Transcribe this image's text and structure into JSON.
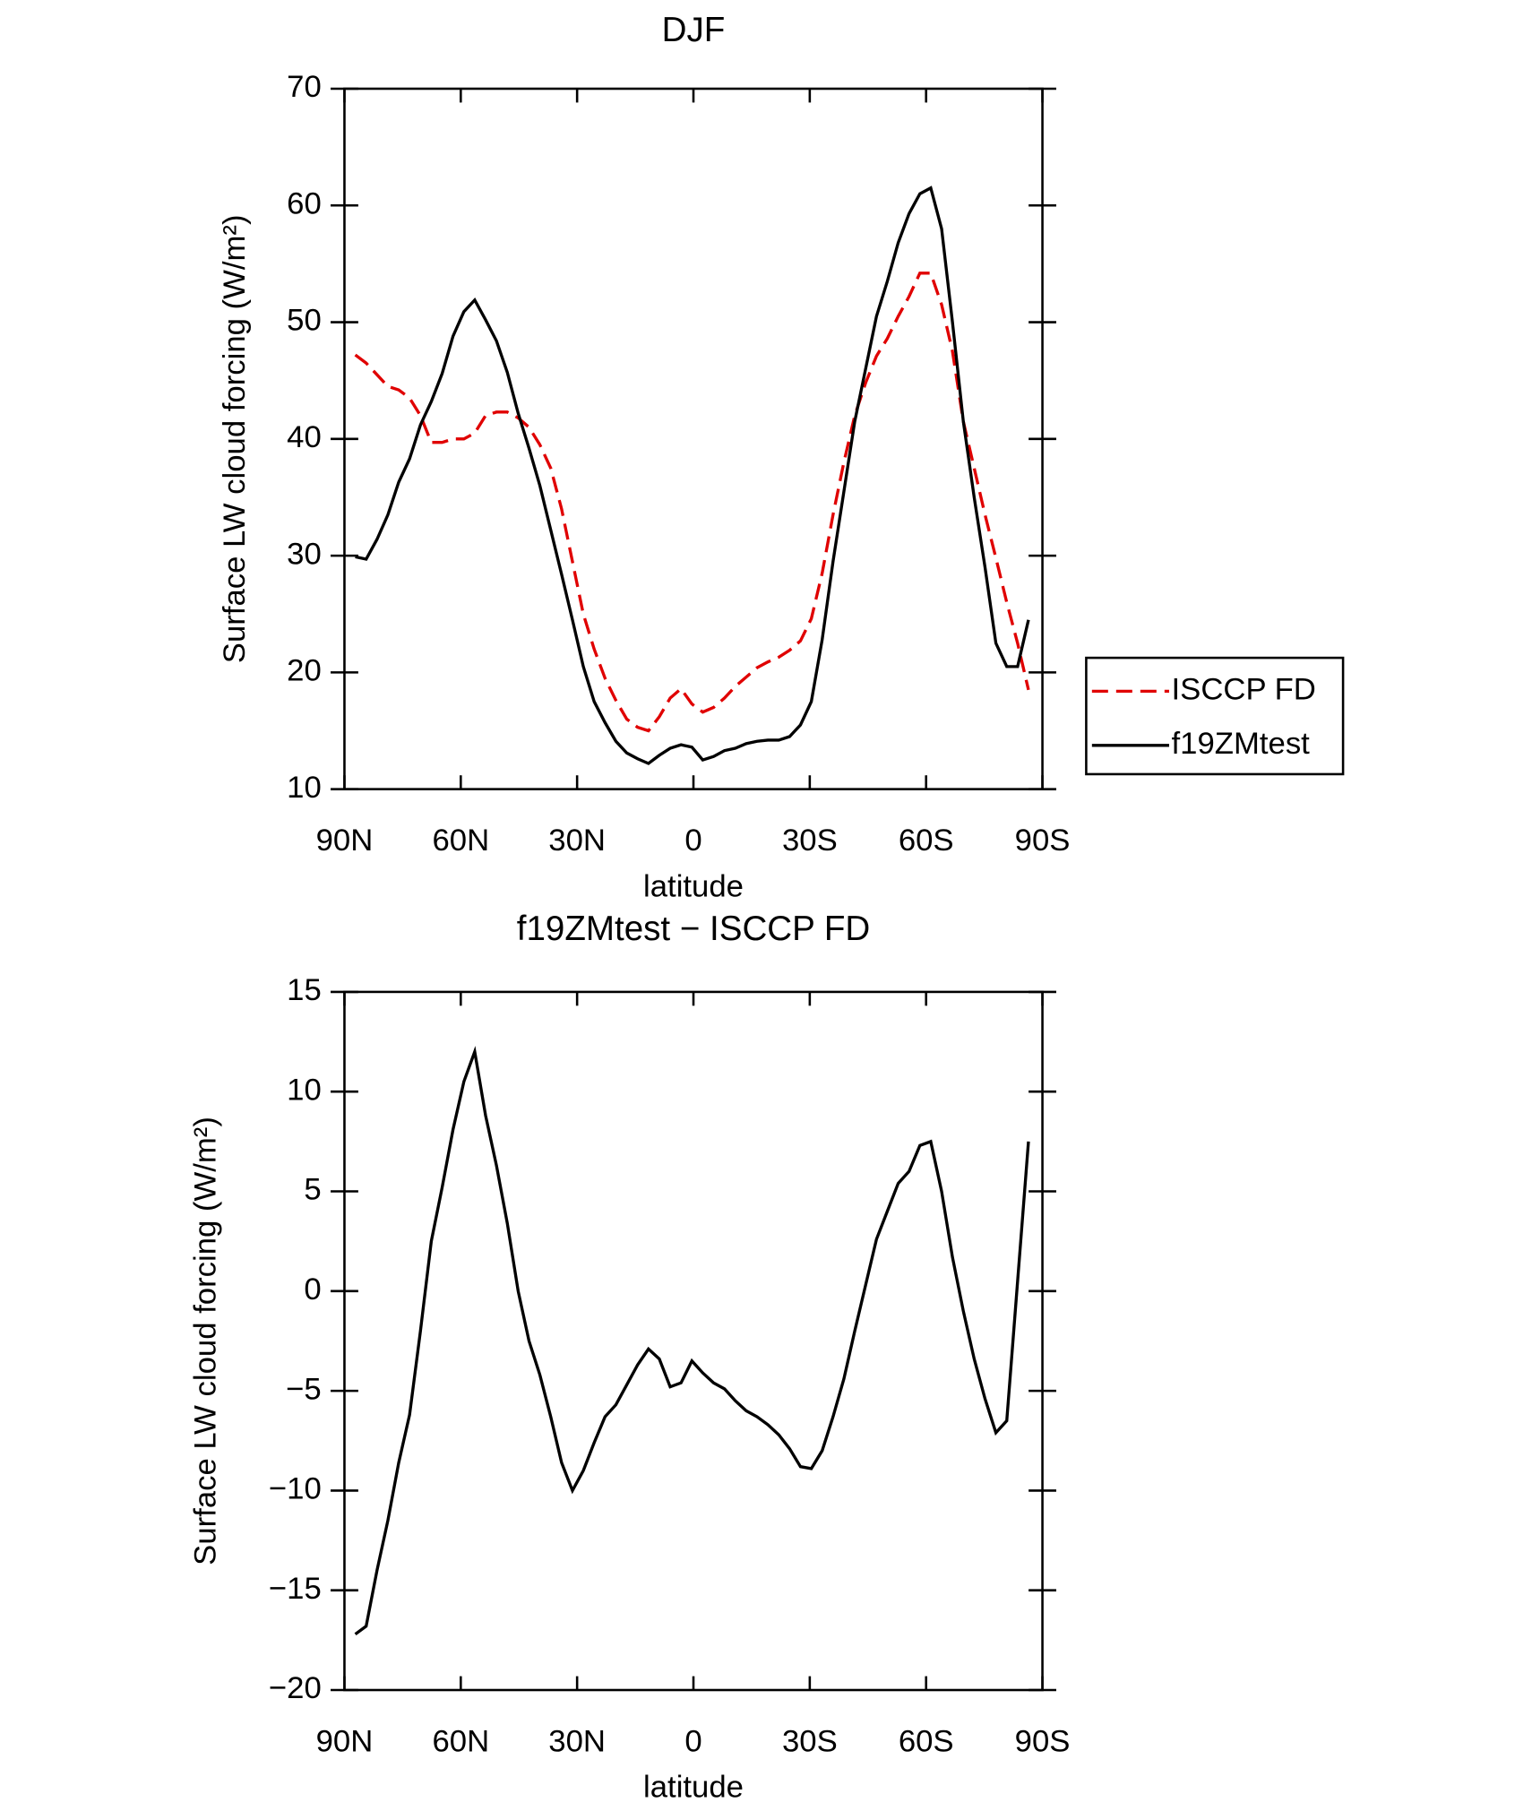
{
  "chart_data": [
    {
      "type": "line",
      "title": "DJF",
      "xlabel": "latitude",
      "ylabel": "Surface LW cloud forcing (W/m²)",
      "x": [
        87.2,
        84.4,
        81.6,
        78.8,
        76,
        73.2,
        70.4,
        67.6,
        64.8,
        62,
        59.2,
        56.4,
        53.6,
        50.8,
        48,
        45.2,
        42.4,
        39.6,
        36.8,
        34,
        31.2,
        28.4,
        25.6,
        22.8,
        20,
        17.2,
        14.4,
        11.6,
        8.8,
        6,
        3.2,
        0.4,
        -2.4,
        -5.2,
        -8,
        -10.8,
        -13.6,
        -16.4,
        -19.2,
        -22,
        -24.8,
        -27.6,
        -30.4,
        -33.2,
        -36,
        -38.8,
        -41.6,
        -44.4,
        -47.2,
        -50,
        -52.8,
        -55.6,
        -58.4,
        -61.2,
        -64,
        -66.8,
        -69.6,
        -72.4,
        -75.2,
        -78,
        -80.8,
        -83.6,
        -86.4
      ],
      "series": [
        {
          "name": "ISCCP FD",
          "color": "#e00000",
          "dash": true,
          "values": [
            47.2,
            46.5,
            45.5,
            44.5,
            44.2,
            43.5,
            42,
            39.7,
            39.7,
            40,
            40,
            40.5,
            42,
            42.3,
            42.3,
            41.8,
            41,
            39.5,
            37.5,
            34,
            29.5,
            25,
            22,
            19.5,
            17.6,
            16,
            15.3,
            15,
            16.2,
            17.8,
            18.6,
            17.3,
            16.6,
            17,
            17.8,
            18.8,
            19.6,
            20.4,
            20.9,
            21.3,
            21.9,
            22.7,
            24.6,
            28.5,
            33.5,
            38,
            42,
            44.8,
            47.1,
            48.6,
            50.5,
            52.2,
            54.2,
            54.2,
            51.5,
            47.5,
            41.5,
            37.5,
            33.5,
            29.8,
            26,
            22.5,
            18.5
          ]
        },
        {
          "name": "f19ZMtest",
          "color": "#000000",
          "dash": false,
          "values": [
            29.9,
            29.7,
            31.4,
            33.5,
            36.3,
            38.3,
            41.2,
            43.2,
            45.6,
            48.8,
            50.9,
            51.9,
            50.2,
            48.4,
            45.7,
            42.2,
            39.2,
            36,
            32.2,
            28.4,
            24.5,
            20.5,
            17.5,
            15.7,
            14.1,
            13.1,
            12.6,
            12.2,
            12.9,
            13.5,
            13.8,
            13.6,
            12.5,
            12.8,
            13.3,
            13.5,
            13.9,
            14.1,
            14.2,
            14.2,
            14.5,
            15.5,
            17.5,
            22.8,
            29.5,
            35.5,
            41.5,
            46,
            50.5,
            53.5,
            56.8,
            59.3,
            61,
            61.5,
            58,
            50,
            41.5,
            35,
            29,
            22.5,
            20.5,
            20.5,
            24.5
          ]
        }
      ],
      "xlim": [
        90,
        -90
      ],
      "xticks": [
        {
          "value": 90,
          "label": "90N"
        },
        {
          "value": 60,
          "label": "60N"
        },
        {
          "value": 30,
          "label": "30N"
        },
        0,
        {
          "value": -30,
          "label": "30S"
        },
        {
          "value": -60,
          "label": "60S"
        },
        {
          "value": -90,
          "label": "90S"
        }
      ],
      "ylim": [
        10,
        70
      ],
      "yticks": [
        10,
        20,
        30,
        40,
        50,
        60,
        70
      ],
      "legend": "right"
    },
    {
      "type": "line",
      "title": "f19ZMtest − ISCCP FD",
      "xlabel": "latitude",
      "ylabel": "Surface LW cloud forcing (W/m²)",
      "x": [
        87.2,
        84.4,
        81.6,
        78.8,
        76,
        73.2,
        70.4,
        67.6,
        64.8,
        62,
        59.2,
        56.4,
        53.6,
        50.8,
        48,
        45.2,
        42.4,
        39.6,
        36.8,
        34,
        31.2,
        28.4,
        25.6,
        22.8,
        20,
        17.2,
        14.4,
        11.6,
        8.8,
        6,
        3.2,
        0.4,
        -2.4,
        -5.2,
        -8,
        -10.8,
        -13.6,
        -16.4,
        -19.2,
        -22,
        -24.8,
        -27.6,
        -30.4,
        -33.2,
        -36,
        -38.8,
        -41.6,
        -44.4,
        -47.2,
        -50,
        -52.8,
        -55.6,
        -58.4,
        -61.2,
        -64,
        -66.8,
        -69.6,
        -72.4,
        -75.2,
        -78,
        -80.8,
        -83.6,
        -86.4
      ],
      "color": "#000000",
      "values": [
        -17.2,
        -16.8,
        -14,
        -11.5,
        -8.6,
        -6.2,
        -2,
        2.5,
        5.2,
        8.1,
        10.5,
        12,
        8.8,
        6.3,
        3.4,
        0,
        -2.5,
        -4.2,
        -6.3,
        -8.6,
        -10,
        -9,
        -7.6,
        -6.3,
        -5.7,
        -4.7,
        -3.7,
        -2.9,
        -3.4,
        -4.8,
        -4.6,
        -3.5,
        -4.1,
        -4.6,
        -4.9,
        -5.5,
        -6,
        -6.3,
        -6.7,
        -7.2,
        -7.9,
        -8.8,
        -8.9,
        -8,
        -6.3,
        -4.4,
        -2,
        0.3,
        2.6,
        4,
        5.4,
        6,
        7.3,
        7.5,
        5,
        1.7,
        -1,
        -3.4,
        -5.4,
        -7.1,
        -6.5,
        0.5,
        7.5
      ],
      "xlim": [
        90,
        -90
      ],
      "xticks": [
        {
          "value": 90,
          "label": "90N"
        },
        {
          "value": 60,
          "label": "60N"
        },
        {
          "value": 30,
          "label": "30N"
        },
        0,
        {
          "value": -30,
          "label": "30S"
        },
        {
          "value": -60,
          "label": "60S"
        },
        {
          "value": -90,
          "label": "90S"
        }
      ],
      "ylim": [
        -20,
        15
      ],
      "yticks": [
        {
          "value": -20,
          "label": "−20"
        },
        {
          "value": -15,
          "label": "−15"
        },
        {
          "value": -10,
          "label": "−10"
        },
        {
          "value": -5,
          "label": "−5"
        },
        0,
        5,
        10,
        15
      ]
    }
  ]
}
